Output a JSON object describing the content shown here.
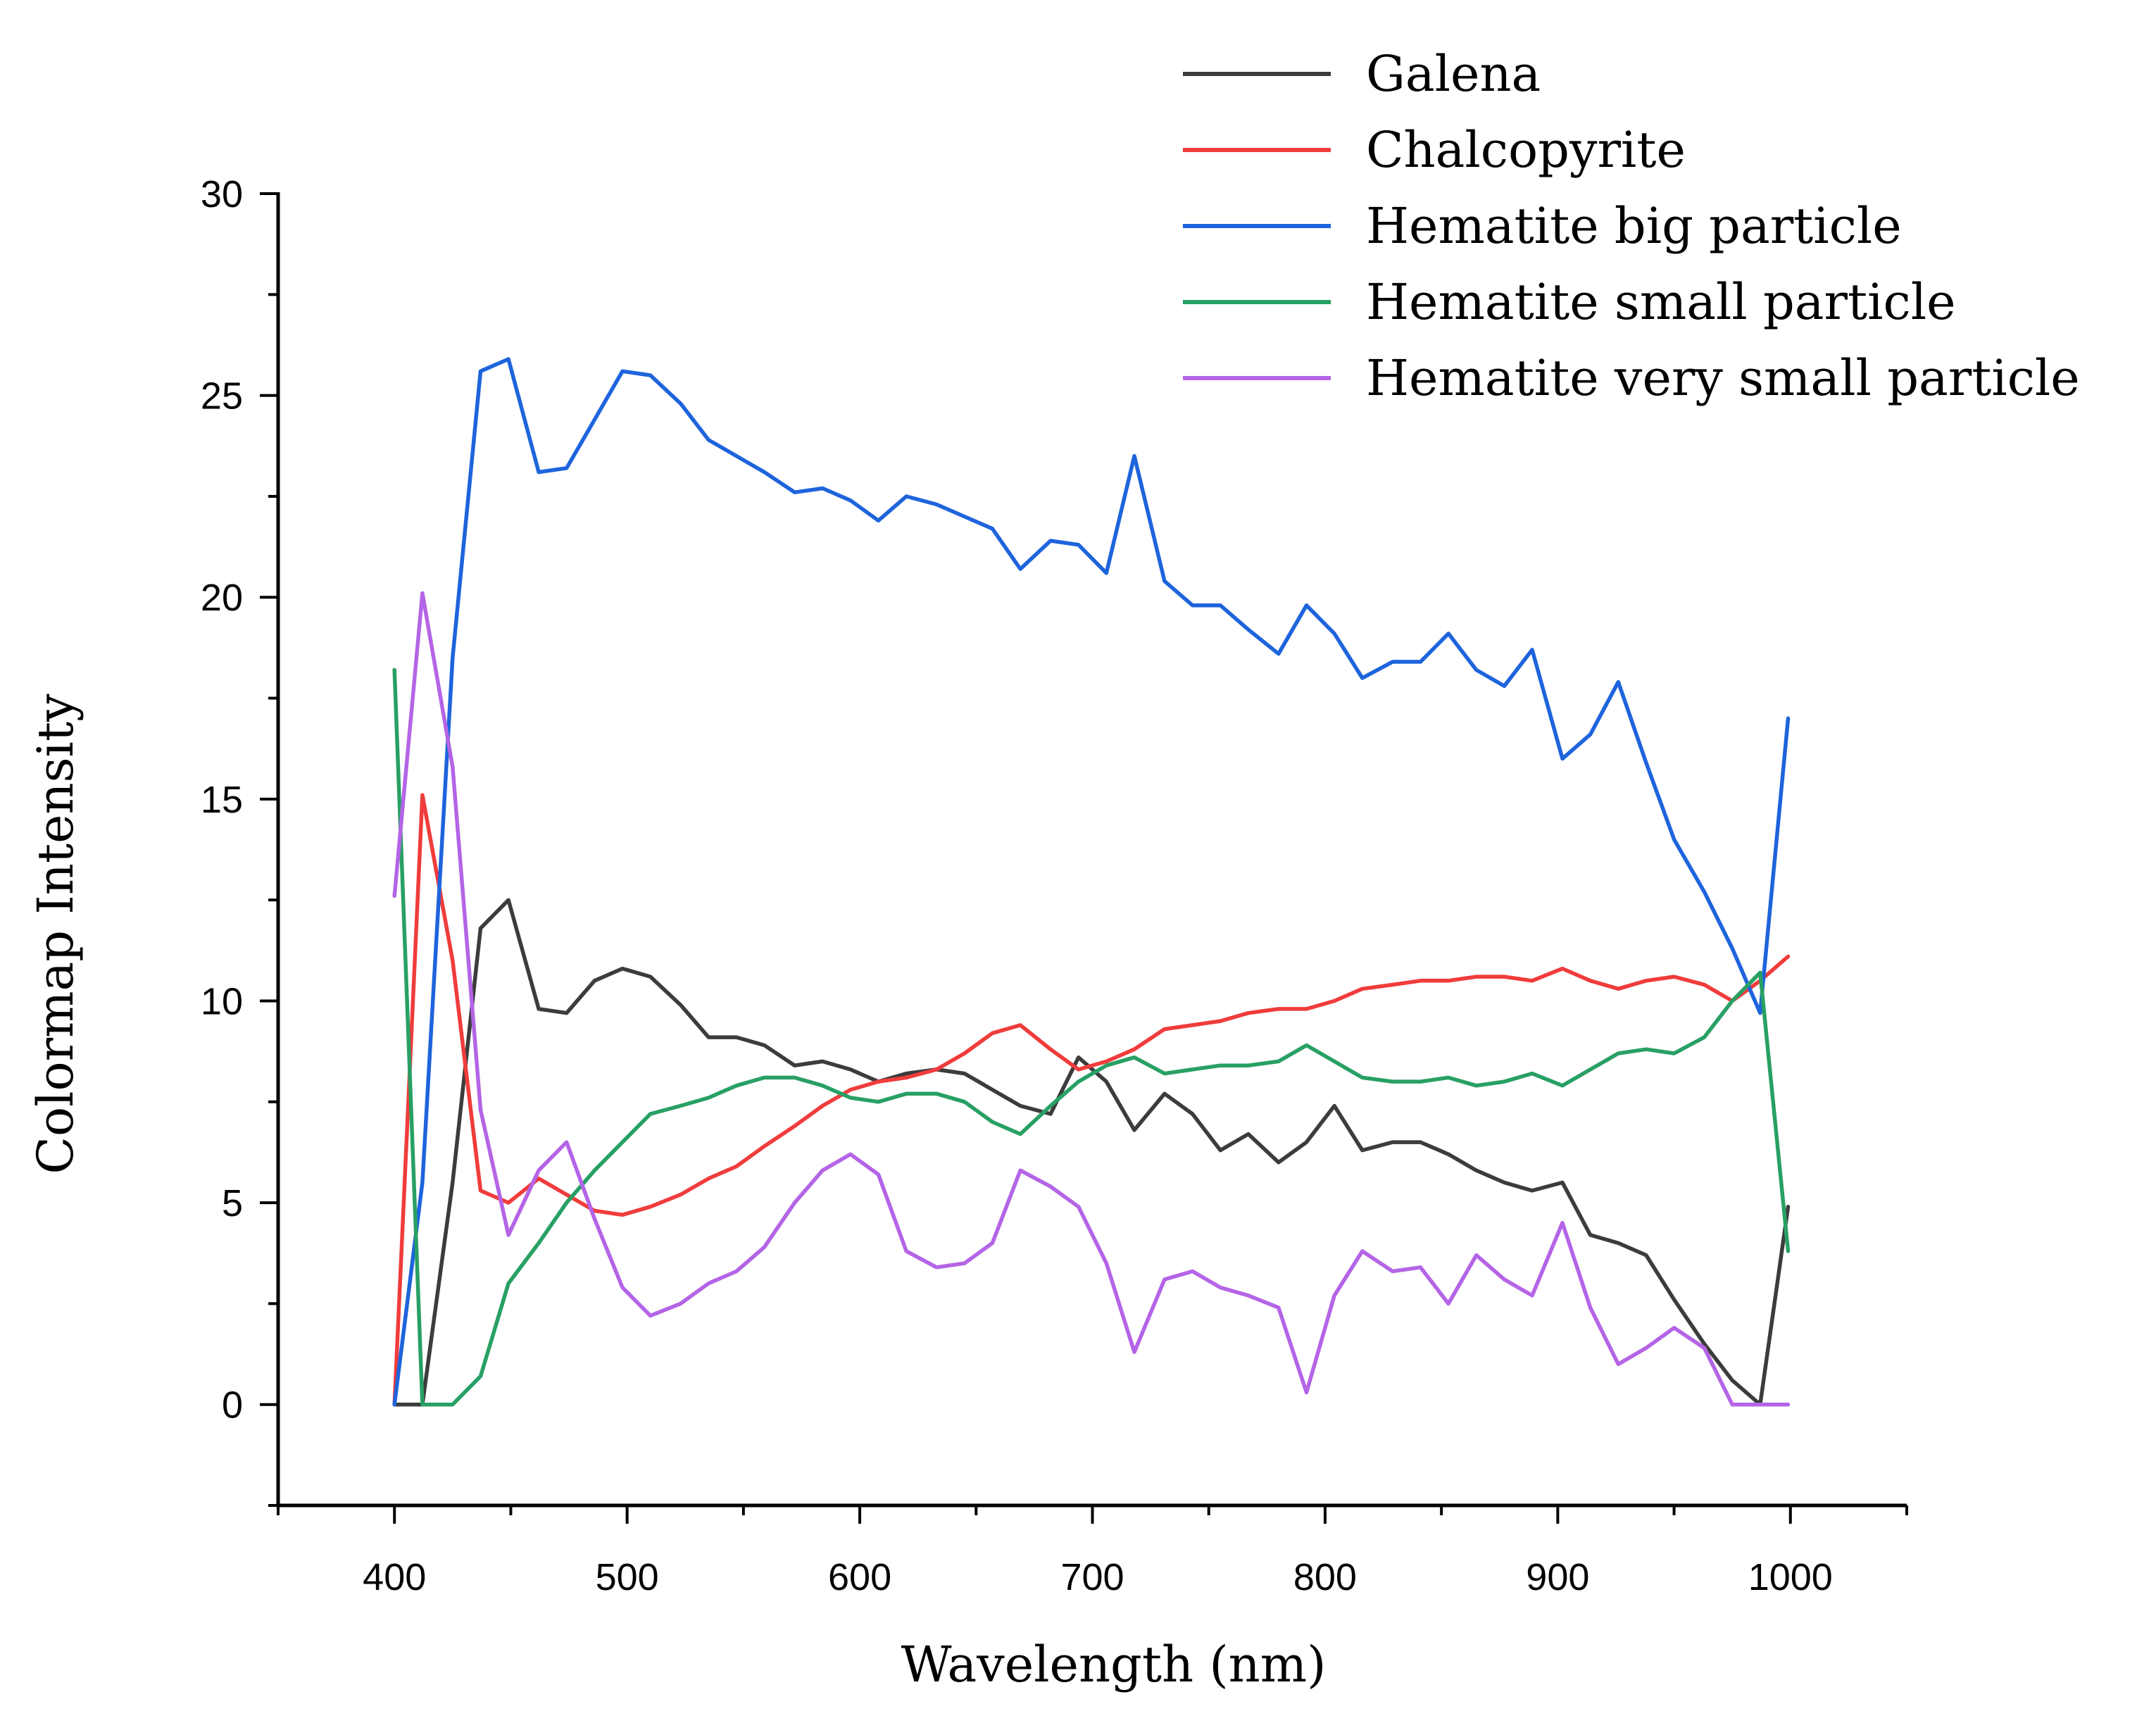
{
  "chart_data": {
    "type": "line",
    "title": "",
    "xlabel": "Wavelength (nm)",
    "ylabel": "Colormap Intensity",
    "xlim": [
      350,
      1050
    ],
    "ylim": [
      -2.5,
      30
    ],
    "xticks": [
      400,
      500,
      600,
      700,
      800,
      900,
      1000
    ],
    "yticks": [
      0,
      5,
      10,
      15,
      20,
      25,
      30
    ],
    "grid": false,
    "legend_position": "top-right",
    "x": [
      400,
      412,
      425,
      437,
      449,
      462,
      474,
      486,
      498,
      510,
      523,
      535,
      547,
      559,
      572,
      584,
      596,
      608,
      620,
      633,
      645,
      657,
      669,
      682,
      694,
      706,
      718,
      731,
      743,
      755,
      767,
      780,
      792,
      804,
      816,
      829,
      841,
      853,
      865,
      877,
      889,
      902,
      914,
      926,
      938,
      950,
      963,
      975,
      987,
      999
    ],
    "series": [
      {
        "name": "Galena",
        "color": "#3c3c3c",
        "values": [
          0,
          0,
          5.5,
          11.8,
          12.5,
          9.8,
          9.7,
          10.5,
          10.8,
          10.6,
          9.9,
          9.1,
          9.1,
          8.9,
          8.4,
          8.5,
          8.3,
          8.0,
          8.2,
          8.3,
          8.2,
          7.8,
          7.4,
          7.2,
          8.6,
          8.0,
          6.8,
          7.7,
          7.2,
          6.3,
          6.7,
          6.0,
          6.5,
          7.4,
          6.3,
          6.5,
          6.5,
          6.2,
          5.8,
          5.5,
          5.3,
          5.5,
          4.2,
          4.0,
          3.7,
          2.6,
          1.5,
          0.6,
          0.0,
          4.9
        ]
      },
      {
        "name": "Chalcopyrite",
        "color": "#f03c3c",
        "values": [
          0,
          15.1,
          11.0,
          5.3,
          5.0,
          5.6,
          5.2,
          4.8,
          4.7,
          4.9,
          5.2,
          5.6,
          5.9,
          6.4,
          6.9,
          7.4,
          7.8,
          8.0,
          8.1,
          8.3,
          8.7,
          9.2,
          9.4,
          8.8,
          8.3,
          8.5,
          8.8,
          9.3,
          9.4,
          9.5,
          9.7,
          9.8,
          9.8,
          10.0,
          10.3,
          10.4,
          10.5,
          10.5,
          10.6,
          10.6,
          10.5,
          10.8,
          10.5,
          10.3,
          10.5,
          10.6,
          10.4,
          10.0,
          10.5,
          11.1
        ]
      },
      {
        "name": "Hematite big particle",
        "color": "#1e64dc",
        "values": [
          0,
          5.5,
          18.5,
          25.6,
          25.9,
          23.1,
          23.2,
          24.4,
          25.6,
          25.5,
          24.8,
          23.9,
          23.5,
          23.1,
          22.6,
          22.7,
          22.4,
          21.9,
          22.5,
          22.3,
          22.0,
          21.7,
          20.7,
          21.4,
          21.3,
          20.6,
          23.5,
          20.4,
          19.8,
          19.8,
          19.2,
          18.6,
          19.8,
          19.1,
          18.0,
          18.4,
          18.4,
          19.1,
          18.2,
          17.8,
          18.7,
          16.0,
          16.6,
          17.9,
          15.9,
          14.0,
          12.7,
          11.3,
          9.7,
          17.0
        ]
      },
      {
        "name": "Hematite small particle",
        "color": "#28a064",
        "values": [
          18.2,
          0,
          0,
          0.7,
          3.0,
          4.0,
          5.0,
          5.8,
          6.5,
          7.2,
          7.4,
          7.6,
          7.9,
          8.1,
          8.1,
          7.9,
          7.6,
          7.5,
          7.7,
          7.7,
          7.5,
          7.0,
          6.7,
          7.4,
          8.0,
          8.4,
          8.6,
          8.2,
          8.3,
          8.4,
          8.4,
          8.5,
          8.9,
          8.5,
          8.1,
          8.0,
          8.0,
          8.1,
          7.9,
          8.0,
          8.2,
          7.9,
          8.3,
          8.7,
          8.8,
          8.7,
          9.1,
          10.0,
          10.7,
          3.8
        ]
      },
      {
        "name": "Hematite very small particle",
        "color": "#b464e6",
        "values": [
          12.6,
          20.1,
          15.8,
          7.3,
          4.2,
          5.8,
          6.5,
          4.6,
          2.9,
          2.2,
          2.5,
          3.0,
          3.3,
          3.9,
          5.0,
          5.8,
          6.2,
          5.7,
          3.8,
          3.4,
          3.5,
          4.0,
          5.8,
          5.4,
          4.9,
          3.5,
          1.3,
          3.1,
          3.3,
          2.9,
          2.7,
          2.4,
          0.3,
          2.7,
          3.8,
          3.3,
          3.4,
          2.5,
          3.7,
          3.1,
          2.7,
          4.5,
          2.4,
          1.0,
          1.4,
          1.9,
          1.4,
          0,
          0,
          0
        ]
      }
    ]
  }
}
